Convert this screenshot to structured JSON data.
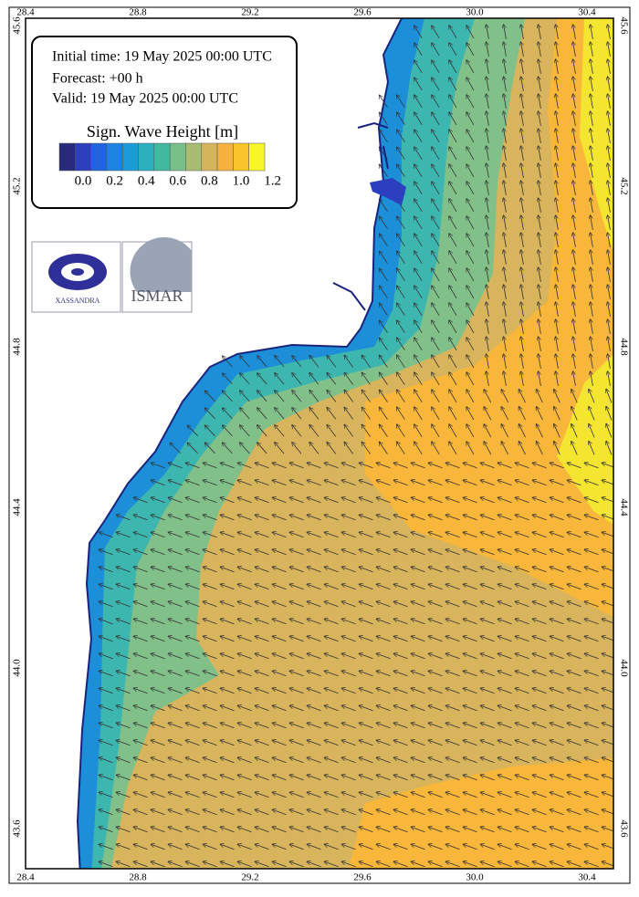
{
  "info": {
    "initial_time": "Initial time: 19 May 2025 00:00 UTC",
    "forecast": "Forecast: +00 h",
    "valid": "Valid: 19 May 2025 00:00 UTC"
  },
  "legend": {
    "title": "Sign. Wave Height [m]",
    "tick_labels": [
      "0.0",
      "0.2",
      "0.4",
      "0.6",
      "0.8",
      "1.0",
      "1.2"
    ],
    "colors": [
      "#2a2a7a",
      "#2b3fbf",
      "#1f64dd",
      "#1b83e0",
      "#1b9bd8",
      "#2bb0bd",
      "#3fb9a0",
      "#77c08a",
      "#a6bd73",
      "#d6b45e",
      "#f7b23c",
      "#fbc52c",
      "#f8f52a"
    ]
  },
  "axes": {
    "x_labels": [
      "28.4",
      "28.8",
      "29.2",
      "29.6",
      "30.0",
      "30.4"
    ],
    "y_labels": [
      "45.6",
      "45.2",
      "44.8",
      "44.4",
      "44.0",
      "43.6"
    ]
  },
  "logos": {
    "left": "XASSANDRA",
    "right": "ISMAR"
  }
}
